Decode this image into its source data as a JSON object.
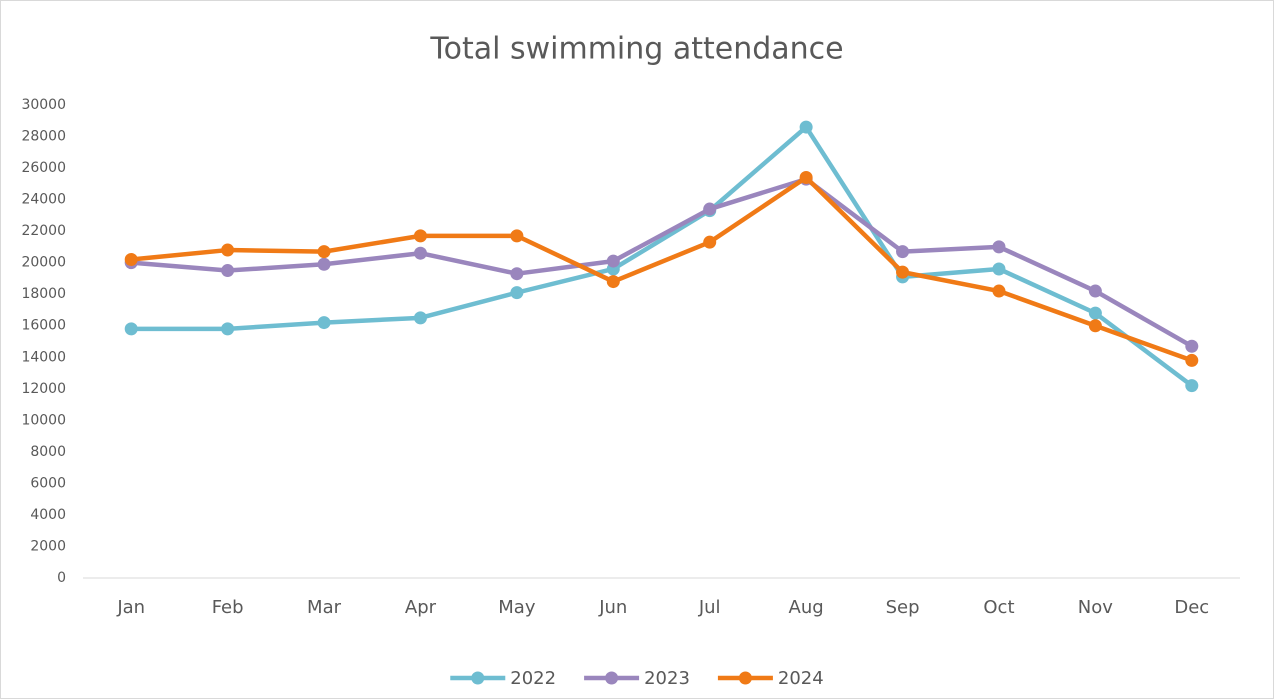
{
  "chart_data": {
    "type": "line",
    "title": "Total swimming attendance",
    "categories": [
      "Jan",
      "Feb",
      "Mar",
      "Apr",
      "May",
      "Jun",
      "Jul",
      "Aug",
      "Sep",
      "Oct",
      "Nov",
      "Dec"
    ],
    "series": [
      {
        "name": "2022",
        "color": "#6ebdd1",
        "values": [
          15800,
          15800,
          16200,
          16500,
          18100,
          19600,
          23300,
          28600,
          19100,
          19600,
          16800,
          12200
        ]
      },
      {
        "name": "2023",
        "color": "#9a86bd",
        "values": [
          20000,
          19500,
          19900,
          20600,
          19300,
          20100,
          23400,
          25300,
          20700,
          21000,
          18200,
          14700
        ]
      },
      {
        "name": "2024",
        "color": "#f07a16",
        "values": [
          20200,
          20800,
          20700,
          21700,
          21700,
          18800,
          21300,
          25400,
          19400,
          18200,
          16000,
          13800
        ]
      }
    ],
    "ylim": [
      0,
      30000
    ],
    "yticks": [
      0,
      2000,
      4000,
      6000,
      8000,
      10000,
      12000,
      14000,
      16000,
      18000,
      20000,
      22000,
      24000,
      26000,
      28000,
      30000
    ],
    "grid": false,
    "legend": "bottom"
  }
}
